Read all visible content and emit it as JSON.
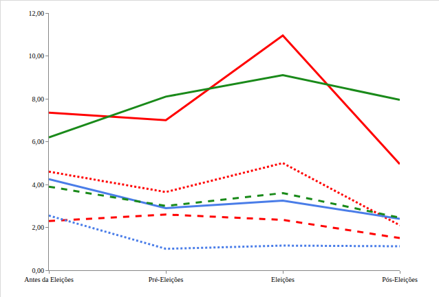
{
  "chart_data": {
    "type": "line",
    "categories": [
      "Antes da Eleições",
      "Pré-Eleições",
      "Eleições",
      "Pós-Eleições"
    ],
    "series": [
      {
        "color": "#ff0000",
        "line_style": "solid",
        "values": [
          7.35,
          7.0,
          10.95,
          4.95
        ]
      },
      {
        "color": "#1a8a1a",
        "line_style": "solid",
        "values": [
          6.2,
          8.1,
          9.1,
          7.95
        ]
      },
      {
        "color": "#ff0000",
        "line_style": "dotted",
        "values": [
          4.6,
          3.65,
          5.0,
          2.1
        ]
      },
      {
        "color": "#4a7de8",
        "line_style": "solid",
        "values": [
          4.25,
          2.9,
          3.25,
          2.4
        ]
      },
      {
        "color": "#1a8a1a",
        "line_style": "dashed",
        "values": [
          3.9,
          3.0,
          3.6,
          2.45
        ]
      },
      {
        "color": "#ff0000",
        "line_style": "dashed",
        "values": [
          2.3,
          2.6,
          2.35,
          1.5
        ]
      },
      {
        "color": "#4a7de8",
        "line_style": "dotted",
        "values": [
          2.55,
          1.0,
          1.15,
          1.12
        ]
      }
    ],
    "ylim": [
      0,
      12
    ],
    "yticks": [
      {
        "value": 0,
        "label": "0,00"
      },
      {
        "value": 2,
        "label": "2,00"
      },
      {
        "value": 4,
        "label": "4,00"
      },
      {
        "value": 6,
        "label": "6,00"
      },
      {
        "value": 8,
        "label": "8,00"
      },
      {
        "value": 10,
        "label": "10,00"
      },
      {
        "value": 12,
        "label": "12,00"
      }
    ],
    "grid": false
  }
}
